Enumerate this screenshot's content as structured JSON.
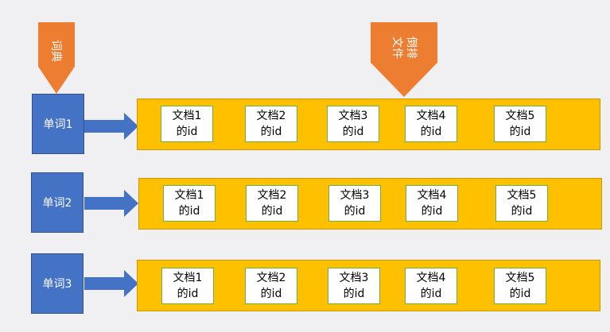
{
  "tags": {
    "dictionary": "词典",
    "inverted_file": "倒排文件"
  },
  "colors": {
    "background": "#f0eff1",
    "word_fill": "#4472c4",
    "arrow_fill": "#4472c4",
    "tag_fill": "#ed7d31",
    "bar_fill": "#ffc000",
    "doc_fill": "#ffffff",
    "doc_border": "#70ad47"
  },
  "rows": [
    {
      "word": "单词1",
      "docs": [
        {
          "line1": "文档1",
          "line2": "的id"
        },
        {
          "line1": "文档2",
          "line2": "的id"
        },
        {
          "line1": "文档3",
          "line2": "的id"
        },
        {
          "line1": "文档4",
          "line2": "的id"
        },
        {
          "line1": "文档5",
          "line2": "的id"
        }
      ]
    },
    {
      "word": "单词2",
      "docs": [
        {
          "line1": "文档1",
          "line2": "的id"
        },
        {
          "line1": "文档2",
          "line2": "的id"
        },
        {
          "line1": "文档3",
          "line2": "的id"
        },
        {
          "line1": "文档4",
          "line2": "的id"
        },
        {
          "line1": "文档5",
          "line2": "的id"
        }
      ]
    },
    {
      "word": "单词3",
      "docs": [
        {
          "line1": "文档1",
          "line2": "的id"
        },
        {
          "line1": "文档2",
          "line2": "的id"
        },
        {
          "line1": "文档3",
          "line2": "的id"
        },
        {
          "line1": "文档4",
          "line2": "的id"
        },
        {
          "line1": "文档5",
          "line2": "的id"
        }
      ]
    }
  ]
}
